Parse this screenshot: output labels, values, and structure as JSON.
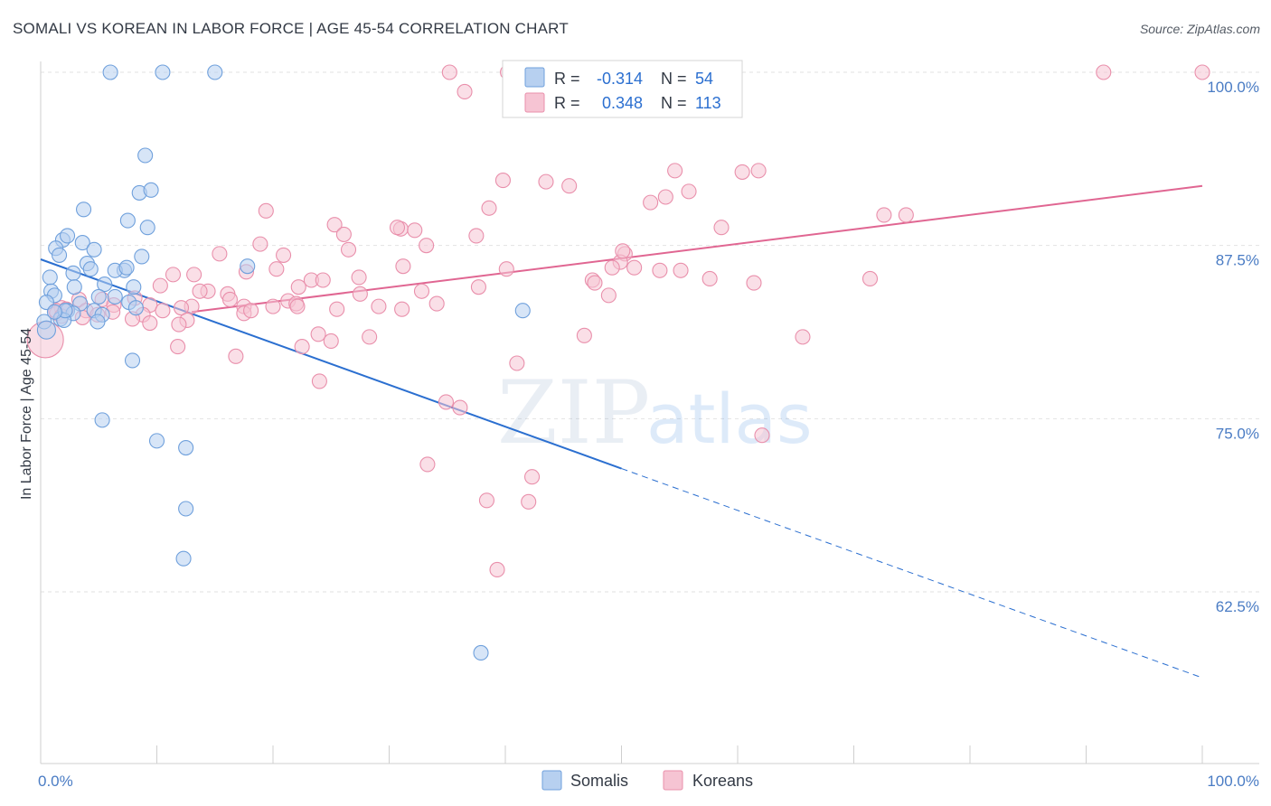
{
  "title": "SOMALI VS KOREAN IN LABOR FORCE | AGE 45-54 CORRELATION CHART",
  "source": "Source: ZipAtlas.com",
  "watermark": {
    "zip": "ZIP",
    "atlas": "atlas"
  },
  "chart_data": {
    "type": "scatter",
    "xlabel": "",
    "ylabel": "In Labor Force | Age 45-54",
    "xlim": [
      0,
      100
    ],
    "ylim": [
      50,
      102
    ],
    "x_tick_labels": [
      "0.0%",
      "100.0%"
    ],
    "y_ticks": [
      62.5,
      75.0,
      87.5,
      100.0
    ],
    "y_tick_labels": [
      "62.5%",
      "75.0%",
      "87.5%",
      "100.0%"
    ],
    "grid": true,
    "legend_position": "bottom-center",
    "stats_box": [
      {
        "r_label": "R =",
        "r_value": "-0.314",
        "n_label": "N =",
        "n_value": "54"
      },
      {
        "r_label": "R =",
        "r_value": "0.348",
        "n_label": "N =",
        "n_value": "113"
      }
    ],
    "series": [
      {
        "name": "Somalis",
        "color": "#6fa0dc",
        "fill": "#b7d0f0",
        "line_color": "#2b6fd0",
        "trend": {
          "x0": 0,
          "y0": 86.5,
          "x1": 50,
          "y1": 71.4,
          "dash_to_x": 100,
          "dash_to_y": 56.3
        },
        "points": [
          [
            6,
            100
          ],
          [
            10.5,
            100
          ],
          [
            15,
            100
          ],
          [
            9,
            94
          ],
          [
            8.5,
            91.3
          ],
          [
            9.5,
            91.5
          ],
          [
            3.7,
            90.1
          ],
          [
            7.5,
            89.3
          ],
          [
            9.2,
            88.8
          ],
          [
            1.9,
            87.9
          ],
          [
            2.3,
            88.2
          ],
          [
            3.6,
            87.7
          ],
          [
            1.3,
            87.3
          ],
          [
            4.6,
            87.2
          ],
          [
            8.7,
            86.7
          ],
          [
            1.6,
            86.8
          ],
          [
            4,
            86.2
          ],
          [
            4.3,
            85.8
          ],
          [
            7.2,
            85.7
          ],
          [
            6.4,
            85.7
          ],
          [
            7.4,
            85.9
          ],
          [
            2.8,
            85.5
          ],
          [
            17.8,
            86
          ],
          [
            0.8,
            85.2
          ],
          [
            5.5,
            84.7
          ],
          [
            2.9,
            84.5
          ],
          [
            8,
            84.5
          ],
          [
            0.9,
            84.2
          ],
          [
            1.2,
            83.9
          ],
          [
            0.5,
            83.4
          ],
          [
            6.4,
            83.8
          ],
          [
            3.4,
            83.3
          ],
          [
            7.6,
            83.4
          ],
          [
            5,
            83.8
          ],
          [
            4.6,
            82.8
          ],
          [
            2.3,
            82.8
          ],
          [
            2.8,
            82.6
          ],
          [
            5.3,
            82.5
          ],
          [
            8.2,
            83
          ],
          [
            1.7,
            82.2
          ],
          [
            2,
            82.1
          ],
          [
            0.3,
            82
          ],
          [
            4.9,
            82
          ],
          [
            41.5,
            82.8
          ],
          [
            0.5,
            81.4
          ],
          [
            7.9,
            79.2
          ],
          [
            5.3,
            74.9
          ],
          [
            10,
            73.4
          ],
          [
            12.5,
            72.9
          ],
          [
            12.5,
            68.5
          ],
          [
            12.3,
            64.9
          ],
          [
            37.9,
            58.1
          ],
          [
            2.1,
            82.8
          ],
          [
            1.2,
            82.7
          ]
        ]
      },
      {
        "name": "Koreans",
        "color": "#e98fab",
        "fill": "#f6c4d3",
        "line_color": "#e06692",
        "trend": {
          "x0": 13,
          "y0": 82.7,
          "x1": 100,
          "y1": 91.8
        },
        "points": [
          [
            35.2,
            100
          ],
          [
            40.2,
            100
          ],
          [
            91.5,
            100
          ],
          [
            100,
            100
          ],
          [
            36.5,
            98.6
          ],
          [
            54.6,
            92.9
          ],
          [
            60.4,
            92.8
          ],
          [
            61.8,
            92.9
          ],
          [
            39.8,
            92.2
          ],
          [
            43.5,
            92.1
          ],
          [
            45.5,
            91.8
          ],
          [
            55.8,
            91.4
          ],
          [
            53.8,
            91
          ],
          [
            52.5,
            90.6
          ],
          [
            38.6,
            90.2
          ],
          [
            19.4,
            90
          ],
          [
            72.6,
            89.7
          ],
          [
            74.5,
            89.7
          ],
          [
            25.3,
            89
          ],
          [
            31,
            88.7
          ],
          [
            30.7,
            88.8
          ],
          [
            32.2,
            88.6
          ],
          [
            58.6,
            88.8
          ],
          [
            26.1,
            88.3
          ],
          [
            37.5,
            88.2
          ],
          [
            33.2,
            87.5
          ],
          [
            18.9,
            87.6
          ],
          [
            26.5,
            87.2
          ],
          [
            15.4,
            86.9
          ],
          [
            20.9,
            86.8
          ],
          [
            50.3,
            86.9
          ],
          [
            49.9,
            86.3
          ],
          [
            31.2,
            86
          ],
          [
            20.3,
            85.8
          ],
          [
            17.7,
            85.6
          ],
          [
            49.2,
            85.9
          ],
          [
            51.1,
            85.9
          ],
          [
            53.3,
            85.7
          ],
          [
            55.1,
            85.7
          ],
          [
            13.2,
            85.4
          ],
          [
            11.4,
            85.4
          ],
          [
            40.1,
            85.8
          ],
          [
            27.4,
            85.2
          ],
          [
            71.4,
            85.1
          ],
          [
            57.6,
            85.1
          ],
          [
            23.3,
            85
          ],
          [
            24.3,
            85
          ],
          [
            47.5,
            85
          ],
          [
            47.7,
            84.8
          ],
          [
            61.4,
            84.8
          ],
          [
            37.7,
            84.5
          ],
          [
            10.3,
            84.6
          ],
          [
            22.2,
            84.5
          ],
          [
            32.8,
            84.2
          ],
          [
            14.4,
            84.2
          ],
          [
            13.7,
            84.2
          ],
          [
            16.1,
            84
          ],
          [
            27.5,
            84
          ],
          [
            48.9,
            83.9
          ],
          [
            16.3,
            83.6
          ],
          [
            8.1,
            83.7
          ],
          [
            5.3,
            83.6
          ],
          [
            3.3,
            83.6
          ],
          [
            21.3,
            83.5
          ],
          [
            22,
            83.3
          ],
          [
            34.1,
            83.3
          ],
          [
            6.3,
            83.2
          ],
          [
            17.5,
            83.1
          ],
          [
            9.4,
            83.2
          ],
          [
            13,
            83.1
          ],
          [
            22.1,
            83.1
          ],
          [
            20,
            83.1
          ],
          [
            29.1,
            83.1
          ],
          [
            12.1,
            83
          ],
          [
            1.8,
            83
          ],
          [
            3.9,
            82.8
          ],
          [
            10.5,
            82.8
          ],
          [
            17.5,
            82.6
          ],
          [
            6.2,
            82.7
          ],
          [
            31.1,
            82.9
          ],
          [
            18.1,
            82.8
          ],
          [
            1.4,
            82.6
          ],
          [
            4.9,
            82.5
          ],
          [
            8.8,
            82.5
          ],
          [
            7.9,
            82.2
          ],
          [
            3.6,
            82.3
          ],
          [
            12.6,
            82.1
          ],
          [
            9.4,
            81.9
          ],
          [
            11.9,
            81.8
          ],
          [
            23.9,
            81.1
          ],
          [
            28.3,
            80.9
          ],
          [
            46.8,
            81
          ],
          [
            65.6,
            80.9
          ],
          [
            25,
            80.6
          ],
          [
            0.4,
            80.7
          ],
          [
            11.8,
            80.2
          ],
          [
            22.5,
            80.2
          ],
          [
            16.8,
            79.5
          ],
          [
            41,
            79
          ],
          [
            24,
            77.7
          ],
          [
            34.9,
            76.2
          ],
          [
            36.1,
            75.8
          ],
          [
            62.1,
            73.8
          ],
          [
            33.3,
            71.7
          ],
          [
            42.3,
            70.8
          ],
          [
            38.4,
            69.1
          ],
          [
            42,
            69
          ],
          [
            39.3,
            64.1
          ],
          [
            1.3,
            82.8
          ],
          [
            2.2,
            82.9
          ],
          [
            1.8,
            82.4
          ],
          [
            50.1,
            87.1
          ],
          [
            25.5,
            82.9
          ]
        ]
      }
    ]
  }
}
